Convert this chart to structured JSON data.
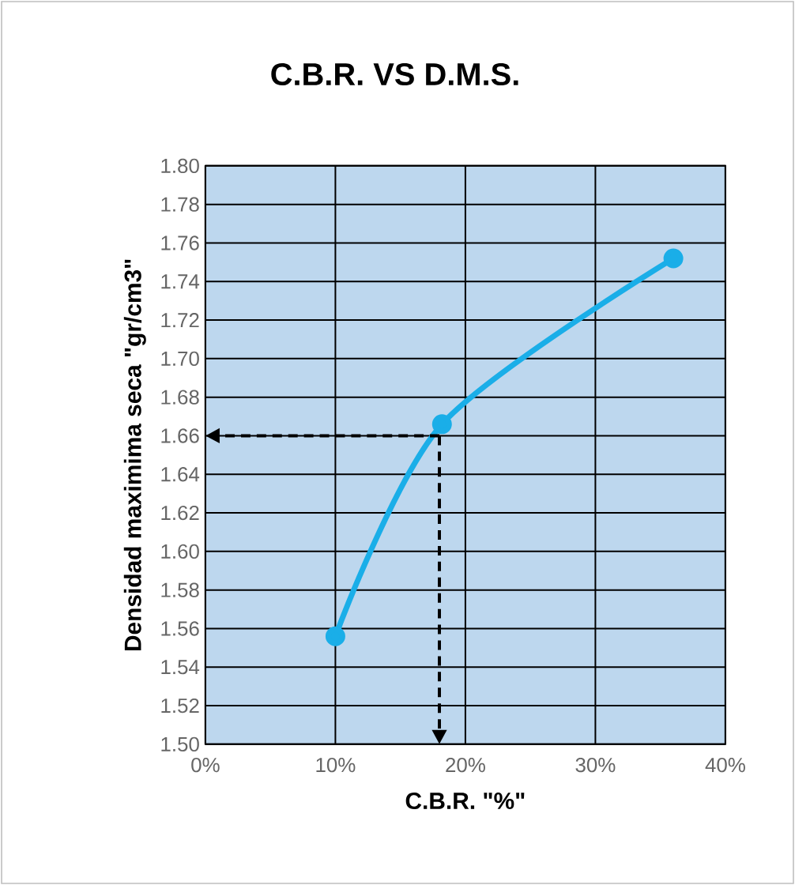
{
  "chart_data": {
    "type": "line",
    "title": "C.B.R. VS D.M.S.",
    "xlabel": "C.B.R. \"%\"",
    "ylabel": "Densidad maximima seca \"gr/cm3\"",
    "x": [
      10,
      18.2,
      36
    ],
    "series": [
      {
        "color": "#1aaee8",
        "values": [
          1.556,
          1.666,
          1.752
        ]
      }
    ],
    "xlim": [
      0,
      40
    ],
    "xticks": [
      {
        "value": 0,
        "label": "0%"
      },
      {
        "value": 10,
        "label": "10%"
      },
      {
        "value": 20,
        "label": "20%"
      },
      {
        "value": 30,
        "label": "30%"
      },
      {
        "value": 40,
        "label": "40%"
      }
    ],
    "ylim": [
      1.5,
      1.8
    ],
    "yticks": [
      {
        "value": 1.5,
        "label": "1.50"
      },
      {
        "value": 1.52,
        "label": "1.52"
      },
      {
        "value": 1.54,
        "label": "1.54"
      },
      {
        "value": 1.56,
        "label": "1.56"
      },
      {
        "value": 1.58,
        "label": "1.58"
      },
      {
        "value": 1.6,
        "label": "1.60"
      },
      {
        "value": 1.62,
        "label": "1.62"
      },
      {
        "value": 1.64,
        "label": "1.64"
      },
      {
        "value": 1.66,
        "label": "1.66"
      },
      {
        "value": 1.68,
        "label": "1.68"
      },
      {
        "value": 1.7,
        "label": "1.70"
      },
      {
        "value": 1.72,
        "label": "1.72"
      },
      {
        "value": 1.74,
        "label": "1.74"
      },
      {
        "value": 1.76,
        "label": "1.76"
      },
      {
        "value": 1.78,
        "label": "1.78"
      },
      {
        "value": 1.8,
        "label": "1.80"
      }
    ],
    "grid": true,
    "marker": "circle",
    "line_style": "solid",
    "ref_lines": [
      {
        "axis": "y",
        "value": 1.66,
        "color": "#000000",
        "line_style": "dashed"
      },
      {
        "axis": "x",
        "value": 18,
        "color": "#000000",
        "line_style": "dashed"
      }
    ]
  }
}
